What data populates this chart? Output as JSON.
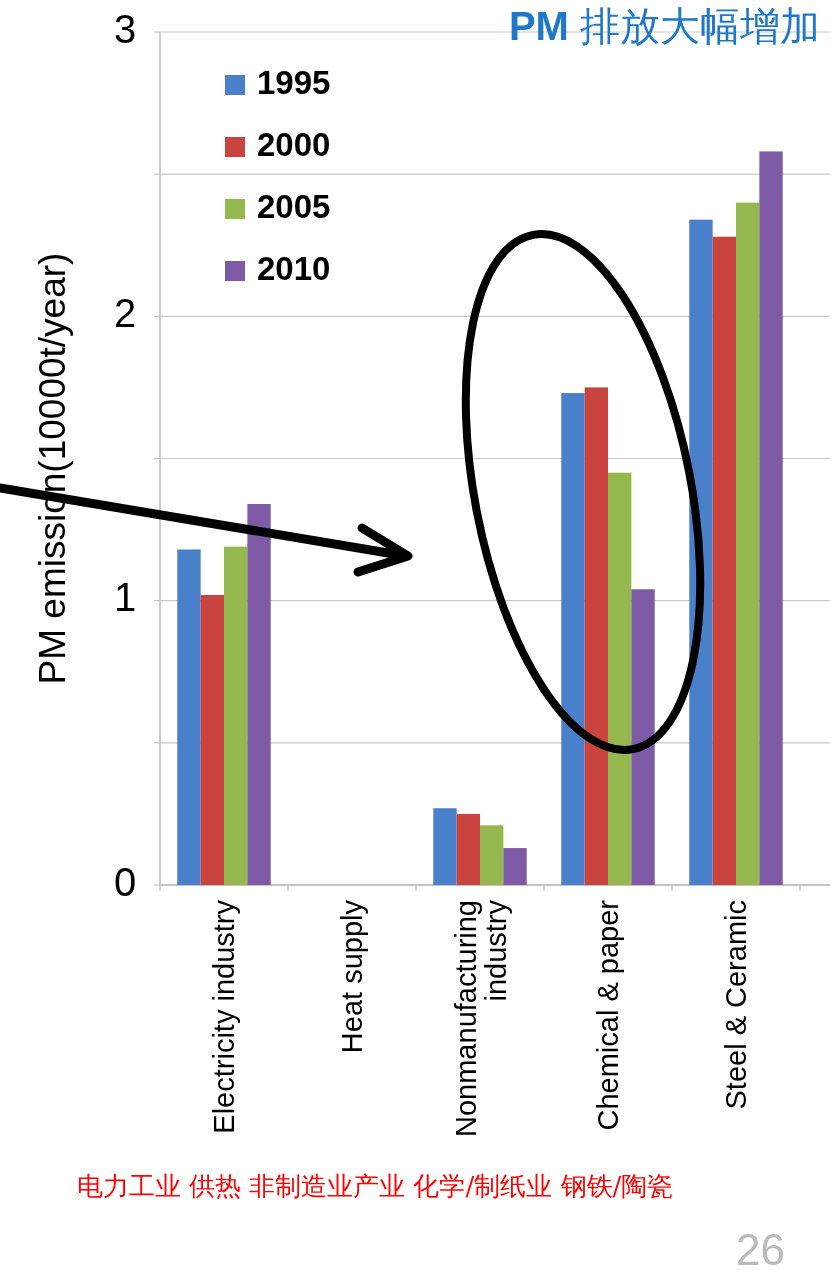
{
  "chart_data": {
    "type": "bar",
    "title": "PM 排放大幅增加",
    "ylabel": "PM emission(10000t/year)",
    "categories": [
      "Electricity industry",
      "Heat supply",
      "Nonmanufacturing industry",
      "Chemical & paper",
      "Steel & Ceramic"
    ],
    "series": [
      {
        "name": "1995",
        "color": "#4a7fc9",
        "values": [
          1.18,
          0,
          0.27,
          1.73,
          2.34
        ]
      },
      {
        "name": "2000",
        "color": "#c9433f",
        "values": [
          1.02,
          0,
          0.25,
          1.75,
          2.28
        ]
      },
      {
        "name": "2005",
        "color": "#95b84e",
        "values": [
          1.19,
          0,
          0.21,
          1.45,
          2.4
        ]
      },
      {
        "name": "2010",
        "color": "#7d5ba6",
        "values": [
          1.34,
          0,
          0.13,
          1.04,
          2.58
        ]
      }
    ],
    "ylim": [
      0,
      3
    ],
    "yticks": [
      0,
      {
        "value": 0.5,
        "label": null
      },
      1,
      {
        "value": 1.5,
        "label": null
      },
      2,
      {
        "value": 2.5,
        "label": null
      },
      3
    ],
    "grid": "y",
    "legend": "top left",
    "annotations": [
      "电力工业  供热   非制造业产业  化学/制纸业  钢铁/陶瓷",
      "26"
    ]
  }
}
